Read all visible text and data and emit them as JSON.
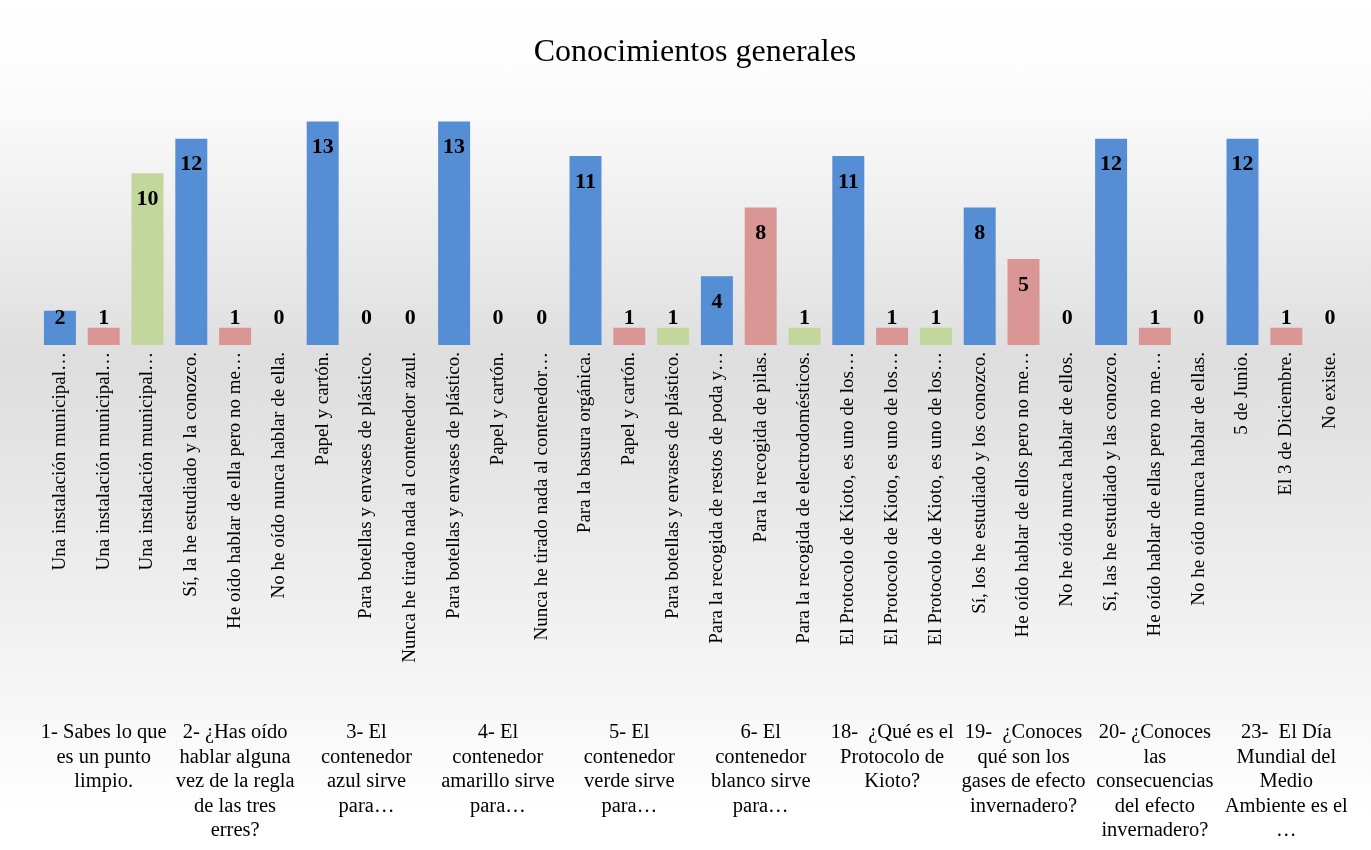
{
  "chart_data": {
    "type": "bar",
    "title": "Conocimientos generales",
    "categories": [
      "Una instalación municipal…",
      "Una instalación municipal…",
      "Una instalación municipal…",
      "Sí, la he estudiado y la conozco.",
      "He oído hablar de ella pero no me…",
      "No he oído nunca hablar de ella.",
      "Papel y cartón.",
      "Para botellas y envases de plástico.",
      "Nunca he tirado nada al contenedor azul.",
      "Para botellas y envases de plástico.",
      "Papel y cartón.",
      "Nunca he tirado nada al contenedor…",
      "Para la basura orgánica.",
      "Papel y cartón.",
      "Para botellas y envases de plástico.",
      "Para la recogida de restos de poda y…",
      "Para la recogida de pilas.",
      "Para la recogida de electrodomésticos.",
      "El Protocolo de Kioto, es uno de los…",
      "El Protocolo de Kioto, es uno de los…",
      "El Protocolo de Kioto, es uno de los…",
      "Sí, los he estudiado y los conozco.",
      "He oído hablar de ellos pero no me…",
      "No he oído nunca hablar de ellos.",
      "Sí, las he estudiado y las conozco.",
      "He oído hablar de ellas pero no me…",
      "No he oído nunca hablar de ellas.",
      "5 de Junio.",
      "El 3 de Diciembre.",
      "No existe."
    ],
    "values": [
      2,
      1,
      10,
      12,
      1,
      0,
      13,
      0,
      0,
      13,
      0,
      0,
      11,
      1,
      1,
      4,
      8,
      1,
      11,
      1,
      1,
      8,
      5,
      0,
      12,
      1,
      0,
      12,
      1,
      0
    ],
    "colors": [
      "#558ed5",
      "#d99694",
      "#c3d69b",
      "#558ed5",
      "#d99694",
      "#c3d69b",
      "#558ed5",
      "#d99694",
      "#c3d69b",
      "#558ed5",
      "#d99694",
      "#c3d69b",
      "#558ed5",
      "#d99694",
      "#c3d69b",
      "#558ed5",
      "#d99694",
      "#c3d69b",
      "#558ed5",
      "#d99694",
      "#c3d69b",
      "#558ed5",
      "#d99694",
      "#c3d69b",
      "#558ed5",
      "#d99694",
      "#c3d69b",
      "#558ed5",
      "#d99694",
      "#c3d69b"
    ],
    "annotations": [
      "1- Sabes lo que es un punto limpio.",
      "2- ¿Has oído hablar alguna vez de la regla de las tres erres?",
      "3- El contenedor azul sirve para…",
      "4- El contenedor amarillo sirve para…",
      "5- El contenedor verde sirve para…",
      "6- El contenedor blanco sirve para…",
      "18-  ¿Qué es el Protocolo de Kioto?",
      "19-  ¿Conoces qué son los gases de efecto invernadero?",
      "20- ¿Conoces las consecuencias del efecto invernadero?",
      "23-  El Día Mundial del Medio Ambiente es el …"
    ],
    "tick_labels": "x",
    "data_labels": true
  }
}
